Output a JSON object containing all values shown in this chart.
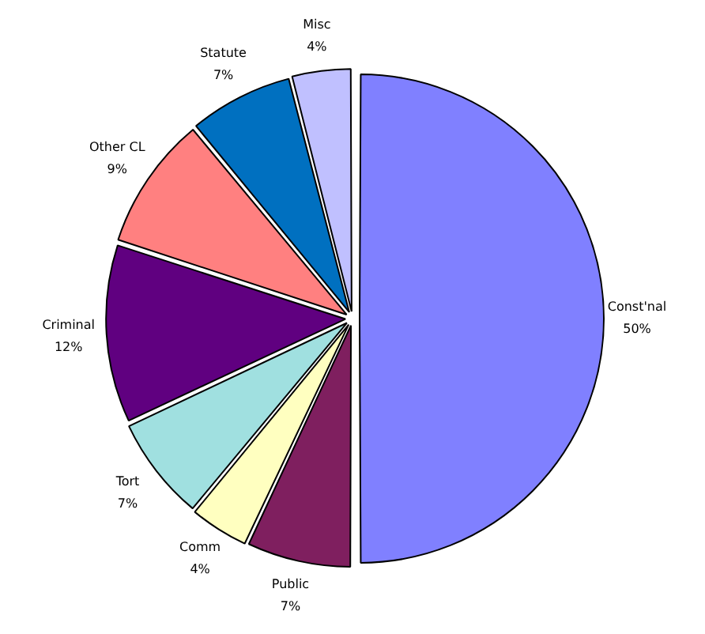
{
  "chart_data": {
    "type": "pie",
    "categories": [
      "Const'nal",
      "Public",
      "Comm",
      "Tort",
      "Criminal",
      "Other CL",
      "Statute",
      "Misc"
    ],
    "values": [
      50,
      7,
      4,
      7,
      12,
      9,
      7,
      4
    ],
    "value_labels": [
      "50%",
      "7%",
      "4%",
      "7%",
      "12%",
      "9%",
      "7%",
      "4%"
    ],
    "colors": [
      "#8080ff",
      "#7f1f5f",
      "#ffffc0",
      "#a0e0e0",
      "#600080",
      "#ff8080",
      "#0070c0",
      "#c0c0ff"
    ],
    "legend": false
  }
}
